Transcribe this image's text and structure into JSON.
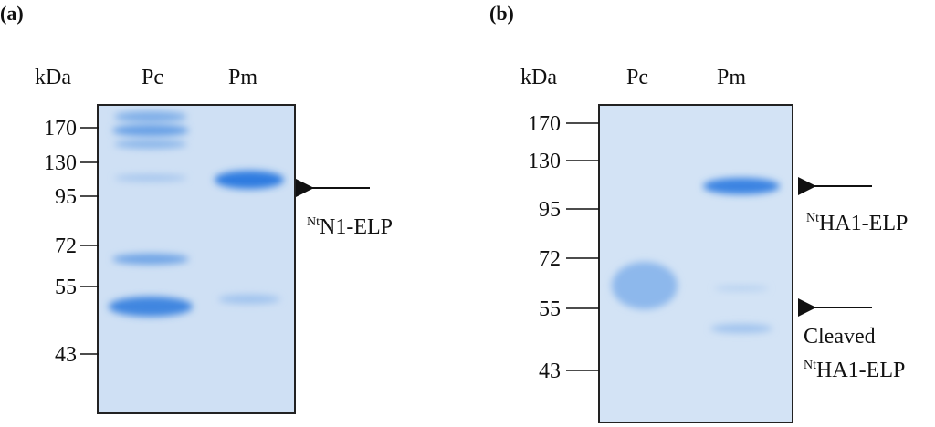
{
  "panels": [
    {
      "label": "(a)",
      "lane_header": "kDa",
      "lanes": [
        "Pc",
        "Pm"
      ],
      "markers": [
        "170",
        "130",
        "95",
        "72",
        "55",
        "43"
      ],
      "annotations": [
        {
          "sup": "Nt",
          "text": "N1-ELP"
        }
      ]
    },
    {
      "label": "(b)",
      "lane_header": "kDa",
      "lanes": [
        "Pc",
        "Pm"
      ],
      "markers": [
        "170",
        "130",
        "95",
        "72",
        "55",
        "43"
      ],
      "annotations": [
        {
          "sup": "Nt",
          "text": "HA1-ELP"
        },
        {
          "text": "Cleaved"
        },
        {
          "sup": "Nt",
          "text": "HA1-ELP"
        }
      ]
    }
  ]
}
